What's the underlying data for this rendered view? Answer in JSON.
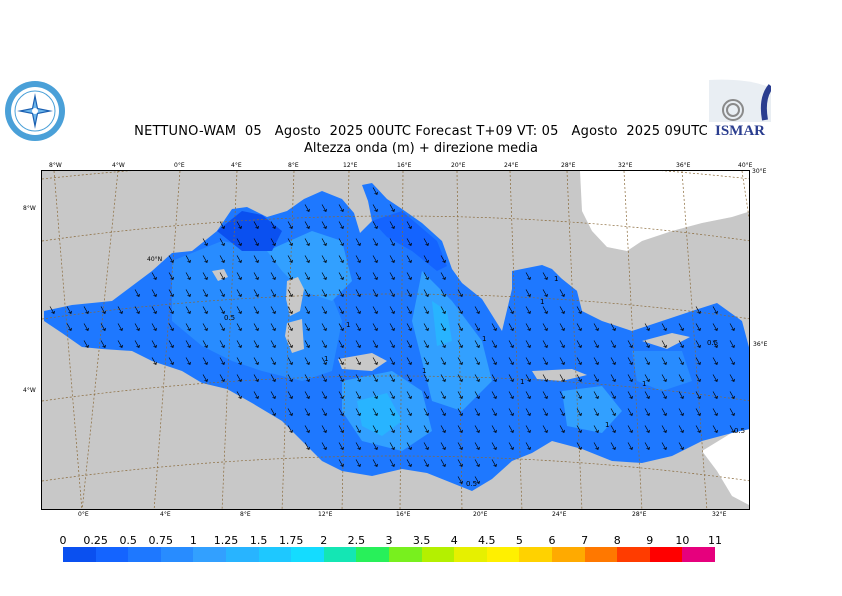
{
  "header": {
    "title": "NETTUNO-WAM  05   Agosto  2025 00UTC Forecast T+09 VT: 05   Agosto  2025 09UTC",
    "subtitle": "Altezza onda (m) + direzione media"
  },
  "logos": {
    "left": "nettuno-logo",
    "right_text": "ISMAR"
  },
  "map": {
    "region": "Mediterranean Sea",
    "land_color": "#c8c8c8",
    "sea_base_color": "#1e78ff",
    "top_lon_ticks": [
      "8°W",
      "4°W",
      "0°E",
      "4°E",
      "8°E",
      "12°E",
      "16°E",
      "20°E",
      "24°E",
      "28°E",
      "32°E",
      "36°E",
      "40°E"
    ],
    "bottom_lon_ticks": [
      "0°E",
      "4°E",
      "8°E",
      "12°E",
      "16°E",
      "20°E",
      "24°E",
      "28°E",
      "32°E"
    ],
    "corner_label": "30°E",
    "left_lat_ticks": [
      "8°W",
      "4°W"
    ],
    "right_lat_tick": "36°E",
    "inner_label": "40°N",
    "contour_labels": [
      "0.5",
      "1",
      "1",
      "1",
      "1",
      "1",
      "1",
      "1",
      "1",
      "0.5",
      "0.5",
      "1",
      "0.5"
    ]
  },
  "scale": {
    "labels": [
      "0",
      "0.25",
      "0.5",
      "0.75",
      "1",
      "1.25",
      "1.5",
      "1.75",
      "2",
      "2.5",
      "3",
      "3.5",
      "4",
      "4.5",
      "5",
      "6",
      "7",
      "8",
      "9",
      "10",
      "11"
    ],
    "colors": [
      "#0a50f0",
      "#1464ff",
      "#1e78ff",
      "#288cff",
      "#32a0ff",
      "#28b4ff",
      "#1ec8ff",
      "#14dcff",
      "#14e6b4",
      "#28f05a",
      "#78f01e",
      "#b4f000",
      "#e6f000",
      "#fff000",
      "#ffd200",
      "#ffaa00",
      "#ff7800",
      "#ff3c00",
      "#ff0000",
      "#e6007d"
    ]
  }
}
